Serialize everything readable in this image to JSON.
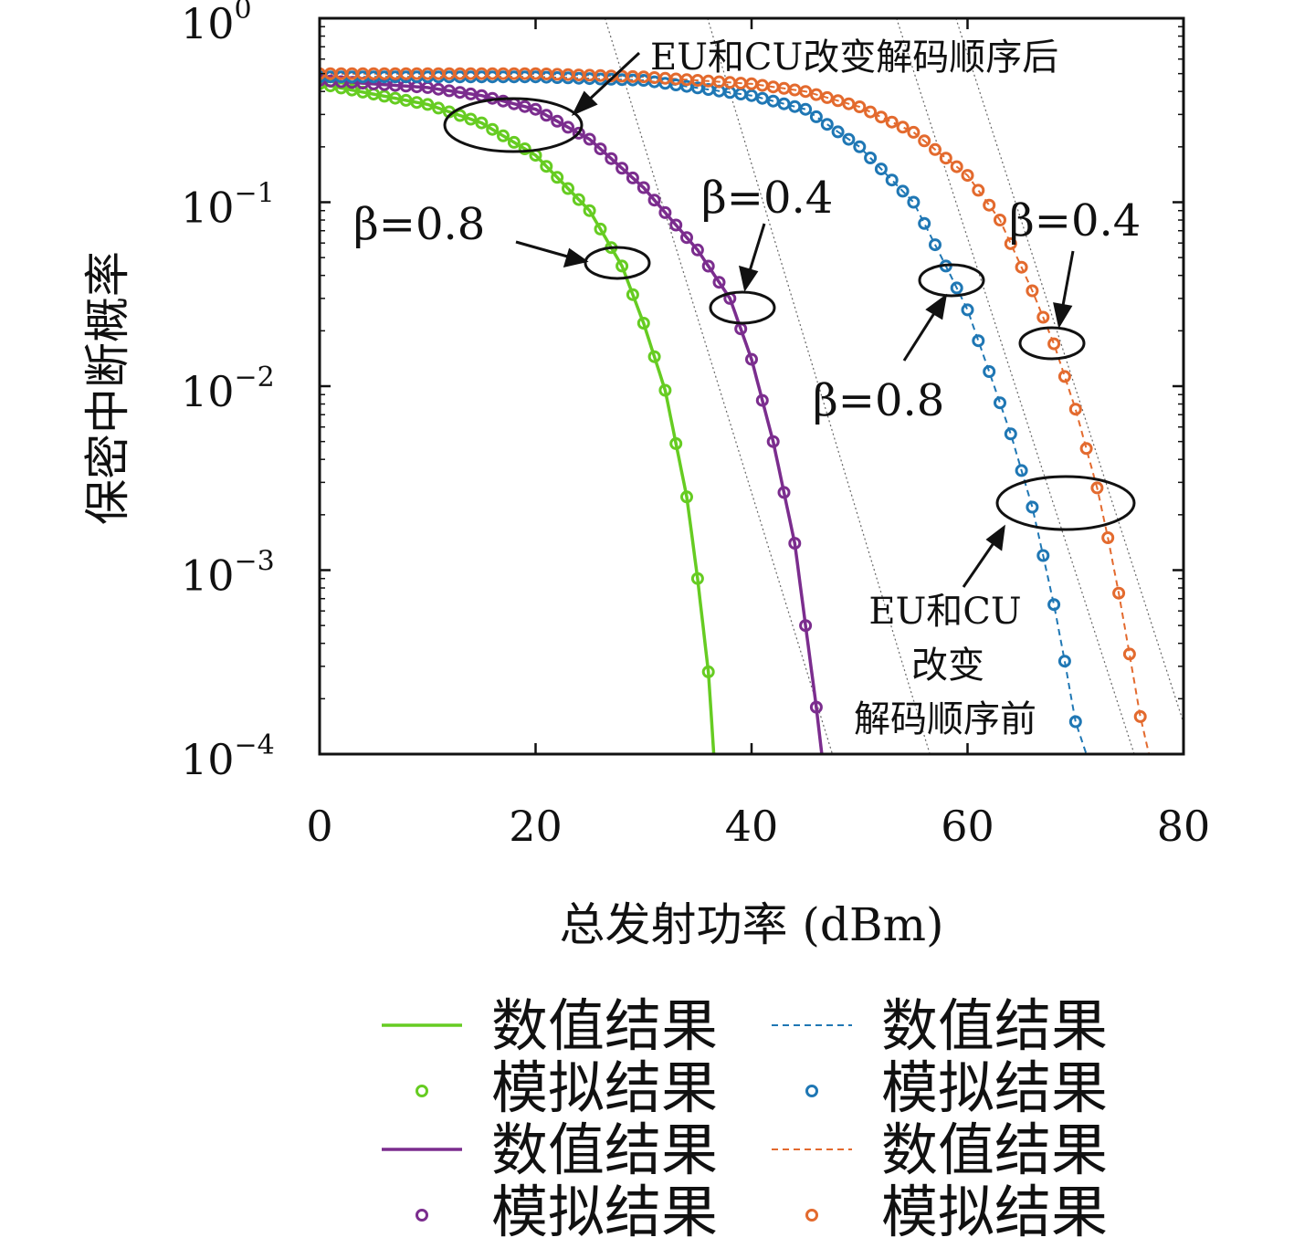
{
  "chart_data": {
    "type": "line",
    "xlabel": "总发射功率 (dBm)",
    "ylabel": "保密中断概率",
    "xlim": [
      0,
      80
    ],
    "ylim": [
      0.0001,
      1
    ],
    "yscale": "log",
    "x_ticks": [
      "0",
      "20",
      "40",
      "60",
      "80"
    ],
    "y_ticks": [
      {
        "base": "10",
        "exp": "0"
      },
      {
        "base": "10",
        "exp": "−1"
      },
      {
        "base": "10",
        "exp": "−2"
      },
      {
        "base": "10",
        "exp": "−3"
      },
      {
        "base": "10",
        "exp": "−4"
      }
    ],
    "grid": false,
    "legend_position": "bottom",
    "series": [
      {
        "key": "green",
        "color": "#66cc22",
        "style": "solid",
        "x": [
          0,
          10,
          15,
          20,
          25,
          28,
          30,
          32,
          34,
          35,
          36,
          36.5
        ],
        "values": [
          0.44,
          0.34,
          0.27,
          0.18,
          0.09,
          0.045,
          0.022,
          0.0095,
          0.0025,
          0.0009,
          0.00028,
          0.0001
        ]
      },
      {
        "key": "purple",
        "color": "#7b2d8e",
        "style": "solid",
        "x": [
          0,
          10,
          15,
          20,
          25,
          30,
          35,
          38,
          40,
          42,
          44,
          45,
          46,
          46.5
        ],
        "values": [
          0.46,
          0.42,
          0.38,
          0.32,
          0.22,
          0.12,
          0.055,
          0.03,
          0.014,
          0.005,
          0.0014,
          0.0005,
          0.00018,
          0.0001
        ]
      },
      {
        "key": "blue",
        "color": "#1f77b4",
        "style": "dashed",
        "x": [
          0,
          20,
          30,
          40,
          45,
          50,
          55,
          58,
          60,
          62,
          64,
          66,
          67,
          68,
          69,
          70,
          71
        ],
        "values": [
          0.48,
          0.48,
          0.46,
          0.38,
          0.32,
          0.2,
          0.1,
          0.045,
          0.026,
          0.012,
          0.0055,
          0.0022,
          0.0012,
          0.00065,
          0.00032,
          0.00015,
          0.0001
        ]
      },
      {
        "key": "orange",
        "color": "#e36a2e",
        "style": "dashed",
        "x": [
          0,
          20,
          30,
          40,
          45,
          50,
          55,
          60,
          63,
          66,
          68,
          70,
          72,
          73,
          74,
          75,
          76,
          76.8
        ],
        "values": [
          0.5,
          0.5,
          0.48,
          0.44,
          0.4,
          0.33,
          0.24,
          0.14,
          0.08,
          0.033,
          0.017,
          0.0075,
          0.0028,
          0.0015,
          0.00075,
          0.00035,
          0.00016,
          0.0001
        ]
      }
    ],
    "markers": {
      "green": {
        "x": [
          0,
          1,
          2,
          3,
          4,
          5,
          6,
          7,
          8,
          9,
          10,
          11,
          12,
          13,
          14,
          15,
          16,
          17,
          18,
          19,
          20,
          21,
          22,
          23,
          24,
          25,
          26,
          27,
          28,
          29,
          30,
          31,
          32,
          33,
          34,
          35,
          36
        ]
      },
      "purple": {
        "x": [
          0,
          1,
          2,
          3,
          4,
          5,
          6,
          7,
          8,
          9,
          10,
          11,
          12,
          13,
          14,
          15,
          16,
          17,
          18,
          19,
          20,
          21,
          22,
          23,
          24,
          25,
          26,
          27,
          28,
          29,
          30,
          31,
          32,
          33,
          34,
          35,
          36,
          37,
          38,
          39,
          40,
          41,
          42,
          43,
          44,
          45,
          46
        ]
      },
      "blue": {
        "x": [
          0,
          1,
          2,
          3,
          4,
          5,
          6,
          7,
          8,
          9,
          10,
          11,
          12,
          13,
          14,
          15,
          16,
          17,
          18,
          19,
          20,
          21,
          22,
          23,
          24,
          25,
          26,
          27,
          28,
          29,
          30,
          31,
          32,
          33,
          34,
          35,
          36,
          37,
          38,
          39,
          40,
          41,
          42,
          43,
          44,
          45,
          46,
          47,
          48,
          49,
          50,
          51,
          52,
          53,
          54,
          55,
          56,
          57,
          58,
          59,
          60,
          61,
          62,
          63,
          64,
          65,
          66,
          67,
          68,
          69,
          70
        ]
      },
      "orange": {
        "x": [
          0,
          1,
          2,
          3,
          4,
          5,
          6,
          7,
          8,
          9,
          10,
          11,
          12,
          13,
          14,
          15,
          16,
          17,
          18,
          19,
          20,
          21,
          22,
          23,
          24,
          25,
          26,
          27,
          28,
          29,
          30,
          31,
          32,
          33,
          34,
          35,
          36,
          37,
          38,
          39,
          40,
          41,
          42,
          43,
          44,
          45,
          46,
          47,
          48,
          49,
          50,
          51,
          52,
          53,
          54,
          55,
          56,
          57,
          58,
          59,
          60,
          61,
          62,
          63,
          64,
          65,
          66,
          67,
          68,
          69,
          70,
          71,
          72,
          73,
          74,
          75,
          76
        ]
      }
    },
    "legend": [
      {
        "series": "green",
        "kind": "line",
        "label": "数值结果"
      },
      {
        "series": "green",
        "kind": "marker",
        "label": "模拟结果"
      },
      {
        "series": "purple",
        "kind": "line",
        "label": "数值结果"
      },
      {
        "series": "purple",
        "kind": "marker",
        "label": "模拟结果"
      },
      {
        "series": "blue",
        "kind": "line",
        "label": "数值结果"
      },
      {
        "series": "blue",
        "kind": "marker",
        "label": "模拟结果"
      },
      {
        "series": "orange",
        "kind": "line",
        "label": "数值结果"
      },
      {
        "series": "orange",
        "kind": "marker",
        "label": "模拟结果"
      }
    ],
    "annotations": {
      "after_label": "EU和CU改变解码顺序后",
      "before_label_lines": [
        "EU和CU",
        "改变",
        "解码顺序前"
      ],
      "beta_green": "β=0.8",
      "beta_purple": "β=0.4",
      "beta_blue": "β=0.8",
      "beta_orange": "β=0.4"
    }
  }
}
